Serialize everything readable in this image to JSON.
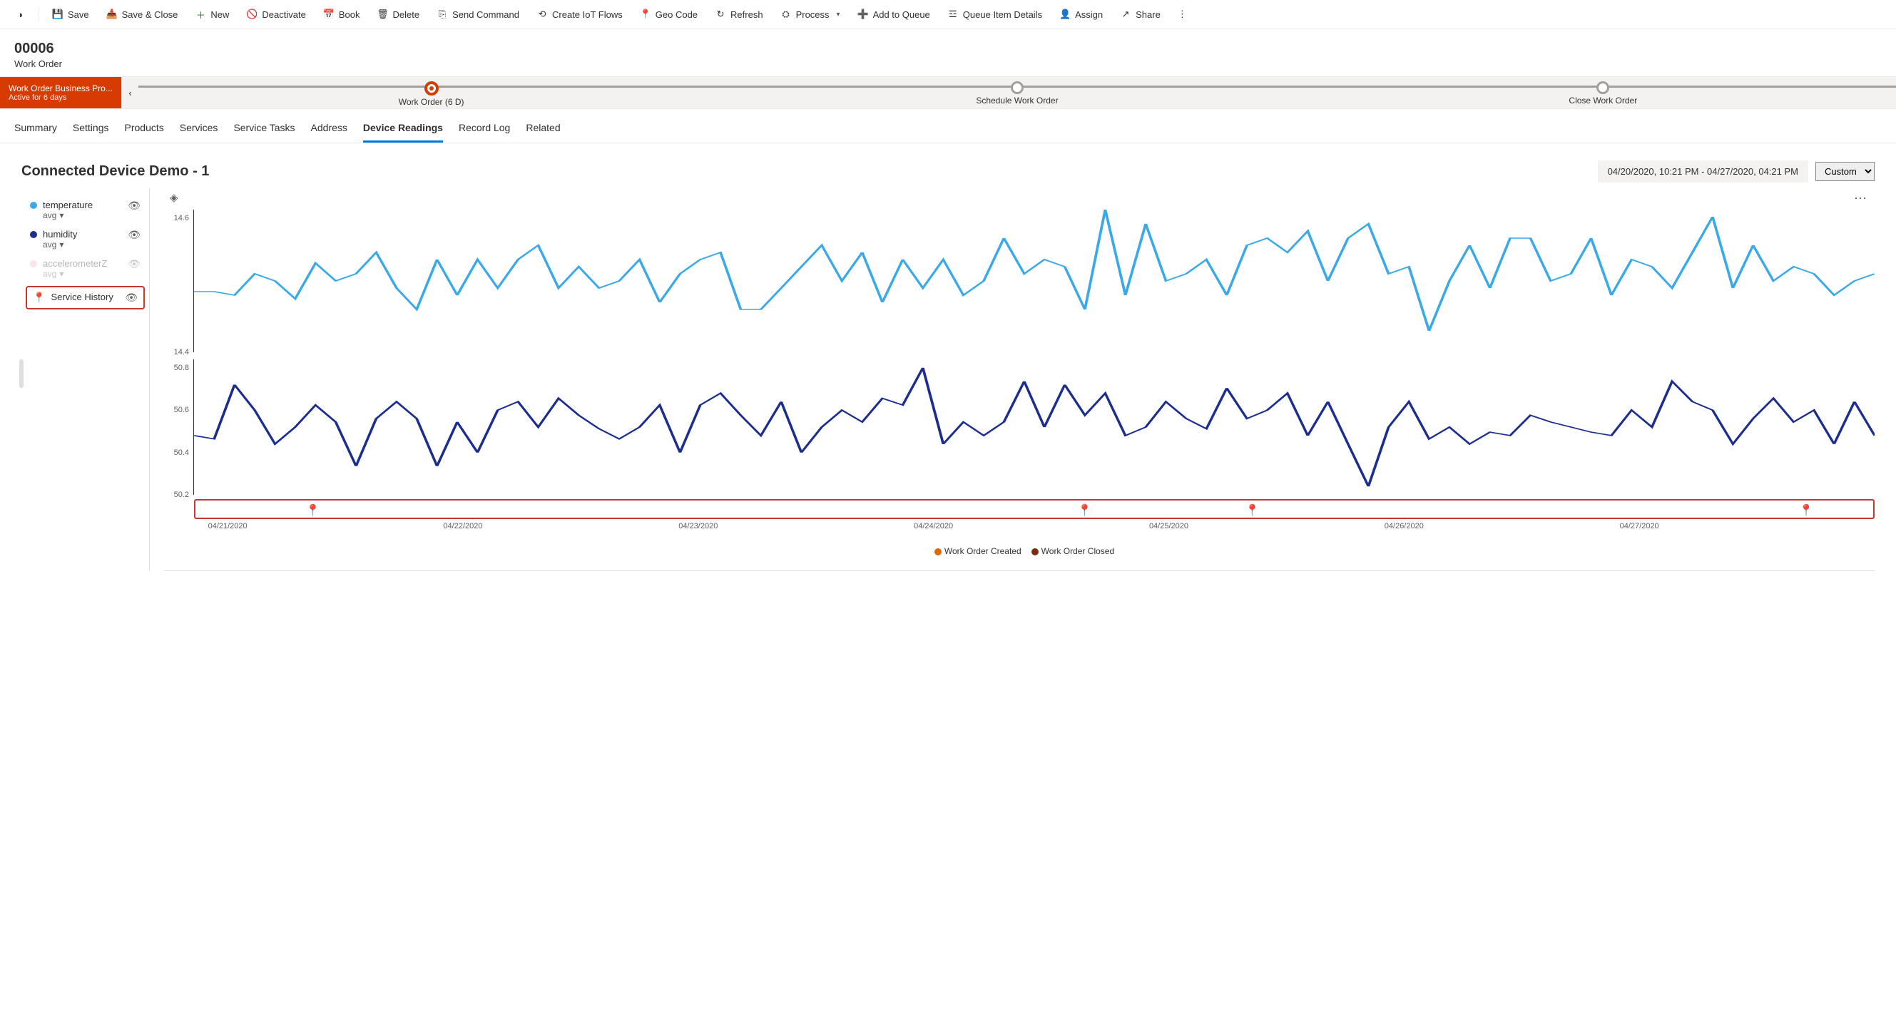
{
  "toolbar": {
    "save": "Save",
    "saveClose": "Save & Close",
    "new": "New",
    "deactivate": "Deactivate",
    "book": "Book",
    "delete": "Delete",
    "sendCommand": "Send Command",
    "createIot": "Create IoT Flows",
    "geoCode": "Geo Code",
    "refresh": "Refresh",
    "process": "Process",
    "addQueue": "Add to Queue",
    "queueDetails": "Queue Item Details",
    "assign": "Assign",
    "share": "Share"
  },
  "record": {
    "id": "00006",
    "type": "Work Order"
  },
  "process": {
    "name": "Work Order Business Pro...",
    "sub": "Active for 6 days",
    "stages": [
      {
        "label": "Work Order  (6 D)",
        "active": true
      },
      {
        "label": "Schedule Work Order",
        "active": false
      },
      {
        "label": "Close Work Order",
        "active": false
      }
    ]
  },
  "tabs": [
    "Summary",
    "Settings",
    "Products",
    "Services",
    "Service Tasks",
    "Address",
    "Device Readings",
    "Record Log",
    "Related"
  ],
  "activeTab": "Device Readings",
  "device": {
    "title": "Connected Device Demo - 1",
    "rangeText": "04/20/2020, 10:21 PM - 04/27/2020, 04:21 PM",
    "rangePreset": "Custom"
  },
  "legend": [
    {
      "name": "temperature",
      "agg": "avg",
      "color": "#3aa9e8",
      "dim": false
    },
    {
      "name": "humidity",
      "agg": "avg",
      "color": "#1b2d8f",
      "dim": false
    },
    {
      "name": "accelerometerZ",
      "agg": "avg",
      "color": "#f4b6b6",
      "dim": true
    }
  ],
  "serviceHistoryLabel": "Service History",
  "chart": {
    "xTicks": [
      "04/21/2020",
      "04/22/2020",
      "04/23/2020",
      "04/24/2020",
      "04/25/2020",
      "04/26/2020",
      "04/27/2020"
    ],
    "xTickPositions": [
      2,
      16,
      30,
      44,
      58,
      72,
      86
    ],
    "temperature": {
      "color": "#3aa9e8",
      "lineWidth": 1.6,
      "ylim": [
        14.3,
        14.7
      ],
      "yticks": [
        14.4,
        14.6
      ],
      "data": [
        14.47,
        14.47,
        14.46,
        14.52,
        14.5,
        14.45,
        14.55,
        14.5,
        14.52,
        14.58,
        14.48,
        14.42,
        14.56,
        14.46,
        14.56,
        14.48,
        14.56,
        14.6,
        14.48,
        14.54,
        14.48,
        14.5,
        14.56,
        14.44,
        14.52,
        14.56,
        14.58,
        14.42,
        14.42,
        14.48,
        14.54,
        14.6,
        14.5,
        14.58,
        14.44,
        14.56,
        14.48,
        14.56,
        14.46,
        14.5,
        14.62,
        14.52,
        14.56,
        14.54,
        14.42,
        14.7,
        14.46,
        14.66,
        14.5,
        14.52,
        14.56,
        14.46,
        14.6,
        14.62,
        14.58,
        14.64,
        14.5,
        14.62,
        14.66,
        14.52,
        14.54,
        14.36,
        14.5,
        14.6,
        14.48,
        14.62,
        14.62,
        14.5,
        14.52,
        14.62,
        14.46,
        14.56,
        14.54,
        14.48,
        14.58,
        14.68,
        14.48,
        14.6,
        14.5,
        14.54,
        14.52,
        14.46,
        14.5,
        14.52
      ]
    },
    "humidity": {
      "color": "#1b2d8f",
      "lineWidth": 1.6,
      "ylim": [
        50.05,
        50.85
      ],
      "yticks": [
        50.2,
        50.4,
        50.6,
        50.8
      ],
      "data": [
        50.4,
        50.38,
        50.7,
        50.55,
        50.35,
        50.45,
        50.58,
        50.48,
        50.22,
        50.5,
        50.6,
        50.5,
        50.22,
        50.48,
        50.3,
        50.55,
        50.6,
        50.45,
        50.62,
        50.52,
        50.44,
        50.38,
        50.45,
        50.58,
        50.3,
        50.58,
        50.65,
        50.52,
        50.4,
        50.6,
        50.3,
        50.45,
        50.55,
        50.48,
        50.62,
        50.58,
        50.8,
        50.35,
        50.48,
        50.4,
        50.48,
        50.72,
        50.45,
        50.7,
        50.52,
        50.65,
        50.4,
        50.45,
        50.6,
        50.5,
        50.44,
        50.68,
        50.5,
        50.55,
        50.65,
        50.4,
        50.6,
        50.35,
        50.1,
        50.45,
        50.6,
        50.38,
        50.45,
        50.35,
        50.42,
        50.4,
        50.52,
        50.48,
        50.45,
        50.42,
        50.4,
        50.55,
        50.45,
        50.72,
        50.6,
        50.55,
        50.35,
        50.5,
        50.62,
        50.48,
        50.55,
        50.35,
        50.6,
        50.4
      ]
    },
    "markers": [
      {
        "x": 7,
        "color": "#d86c00"
      },
      {
        "x": 53,
        "color": "#7a2e0e"
      },
      {
        "x": 63,
        "color": "#7a2e0e"
      },
      {
        "x": 96,
        "color": "#7a2e0e"
      }
    ],
    "bottomLegend": [
      {
        "label": "Work Order Created",
        "color": "#d86c00"
      },
      {
        "label": "Work Order Closed",
        "color": "#7a2e0e"
      }
    ]
  }
}
